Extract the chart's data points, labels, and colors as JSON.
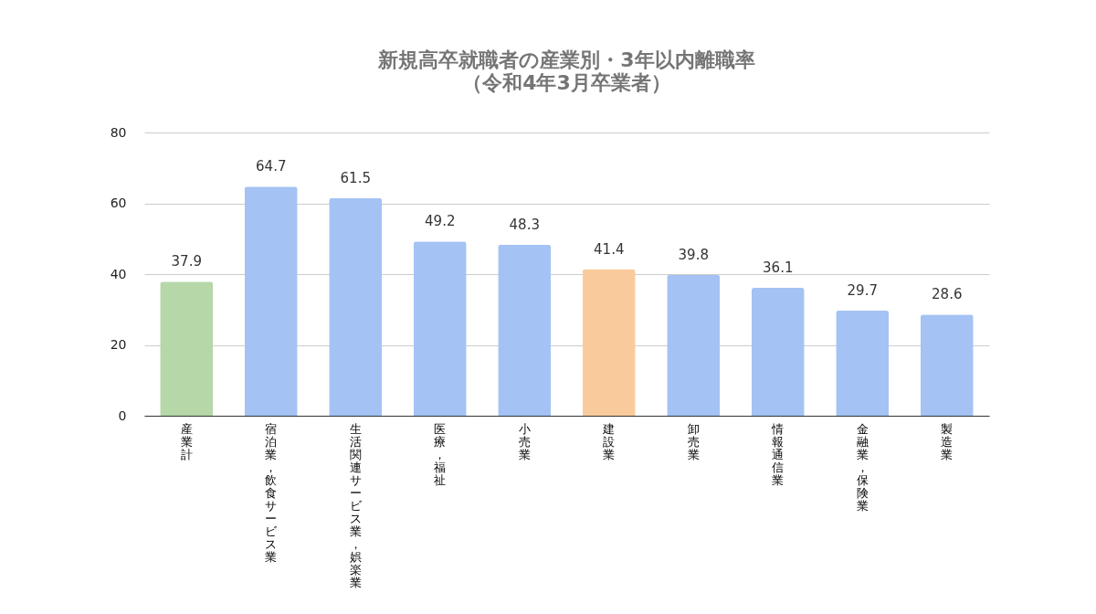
{
  "chart_data": {
    "type": "bar",
    "title": "新規高卒就職者の産業別・3年以内離職率",
    "subtitle": "（令和4年3月卒業者）",
    "categories": [
      "産業計",
      "宿泊業，飲食サービス業",
      "生活関連サービス業，娯楽業",
      "医療，福祉",
      "小売業",
      "建設業",
      "卸売業",
      "情報通信業",
      "金融業，保険業",
      "製造業"
    ],
    "values": [
      37.9,
      64.7,
      61.5,
      49.2,
      48.3,
      41.4,
      39.8,
      36.1,
      29.7,
      28.6
    ],
    "colors": [
      "#b6d7a8",
      "#a4c2f4",
      "#a4c2f4",
      "#a4c2f4",
      "#a4c2f4",
      "#f9cb9c",
      "#a4c2f4",
      "#a4c2f4",
      "#a4c2f4",
      "#a4c2f4"
    ],
    "ylim": [
      0,
      80
    ],
    "yticks": [
      0,
      20,
      40,
      60,
      80
    ],
    "grid": "y",
    "data_labels": true
  }
}
